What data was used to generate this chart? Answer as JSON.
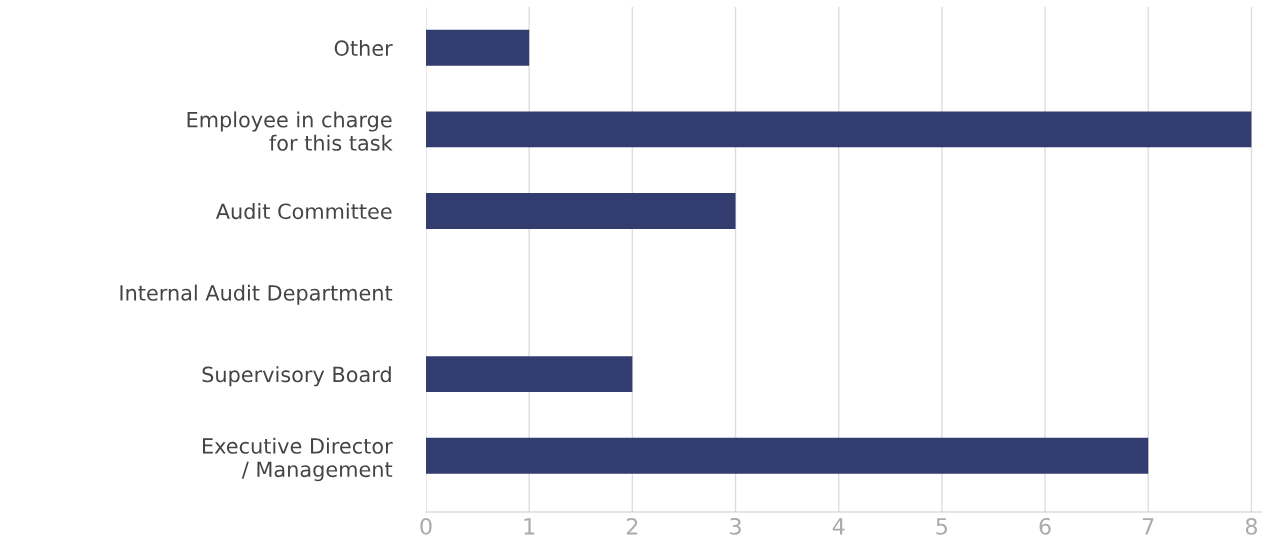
{
  "chart_data": {
    "type": "bar",
    "orientation": "horizontal",
    "categories": [
      "Other",
      "Employee in charge\nfor this task",
      "Audit Committee",
      "Internal Audit Department",
      "Supervisory Board",
      "Executive Director\n/ Management"
    ],
    "values": [
      1,
      8,
      3,
      0,
      2,
      7
    ],
    "color": "#323c6e",
    "xlim": [
      0,
      8.1
    ],
    "xticks": [
      0,
      1,
      2,
      3,
      4,
      5,
      6,
      7,
      8
    ],
    "grid": "x",
    "legend": false
  }
}
